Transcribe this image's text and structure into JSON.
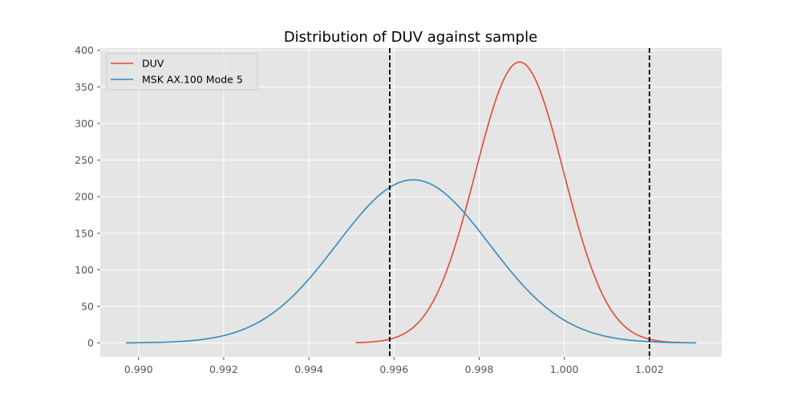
{
  "chart_data": {
    "type": "line",
    "title": "Distribution of DUV against sample",
    "xlabel": "",
    "ylabel": "",
    "xlim": [
      0.9891,
      1.0037
    ],
    "ylim": [
      -19,
      403
    ],
    "xticks": [
      0.99,
      0.992,
      0.994,
      0.996,
      0.998,
      1.0,
      1.002
    ],
    "xtick_labels": [
      "0.990",
      "0.992",
      "0.994",
      "0.996",
      "0.998",
      "1.000",
      "1.002"
    ],
    "yticks": [
      0,
      50,
      100,
      150,
      200,
      250,
      300,
      350,
      400
    ],
    "ytick_labels": [
      "0",
      "50",
      "100",
      "150",
      "200",
      "250",
      "300",
      "350",
      "400"
    ],
    "grid": true,
    "legend_position": "upper-left",
    "series": [
      {
        "name": "DUV",
        "color": "#E24A33",
        "distribution": "normal",
        "mean": 0.99895,
        "peak": 384,
        "x_range": [
          0.9951,
          1.0028
        ]
      },
      {
        "name": "MSK AX.100 Mode 5",
        "color": "#348ABD",
        "distribution": "normal",
        "mean": 0.99645,
        "peak": 223,
        "x_range": [
          0.9897,
          1.0031
        ]
      }
    ],
    "vlines": [
      {
        "x": 0.9959,
        "color": "#000000",
        "style": "dashed"
      },
      {
        "x": 1.002,
        "color": "#000000",
        "style": "dashed"
      }
    ]
  }
}
